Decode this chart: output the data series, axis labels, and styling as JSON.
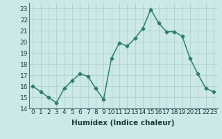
{
  "x": [
    0,
    1,
    2,
    3,
    4,
    5,
    6,
    7,
    8,
    9,
    10,
    11,
    12,
    13,
    14,
    15,
    16,
    17,
    18,
    19,
    20,
    21,
    22,
    23
  ],
  "y": [
    16.0,
    15.5,
    15.0,
    14.5,
    15.8,
    16.5,
    17.1,
    16.9,
    15.8,
    14.8,
    18.5,
    19.9,
    19.6,
    20.3,
    21.2,
    22.9,
    21.7,
    20.9,
    20.9,
    20.5,
    18.5,
    17.1,
    15.8,
    15.5
  ],
  "line_color": "#2e7d6e",
  "marker": "D",
  "marker_size": 2.5,
  "bg_color": "#cce8e8",
  "grid_color": "#aacece",
  "xlabel": "Humidex (Indice chaleur)",
  "ylim": [
    14,
    23.5
  ],
  "yticks": [
    14,
    15,
    16,
    17,
    18,
    19,
    20,
    21,
    22,
    23
  ],
  "xticks": [
    0,
    1,
    2,
    3,
    4,
    5,
    6,
    7,
    8,
    9,
    10,
    11,
    12,
    13,
    14,
    15,
    16,
    17,
    18,
    19,
    20,
    21,
    22,
    23
  ],
  "xlabel_fontsize": 7.5,
  "tick_fontsize": 6.5,
  "line_width": 1.1
}
